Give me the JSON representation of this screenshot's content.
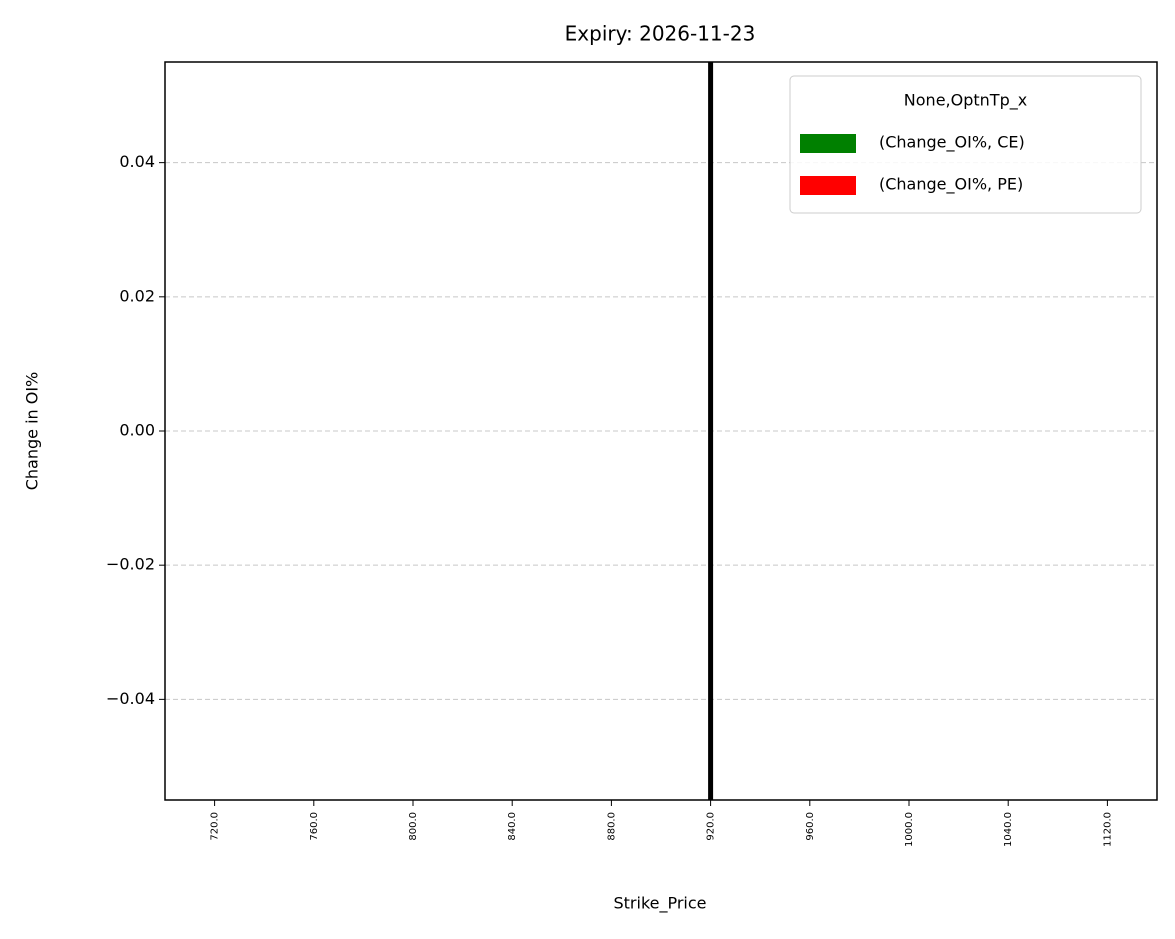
{
  "chart_data": {
    "type": "bar",
    "title": "Expiry: 2026-11-23",
    "x_label": "Strike_Price",
    "y_label": "Change in OI%",
    "categories": [
      "720.0",
      "760.0",
      "800.0",
      "840.0",
      "880.0",
      "920.0",
      "960.0",
      "1000.0",
      "1040.0",
      "1120.0"
    ],
    "series": [
      {
        "name": "(Change_OI%, CE)",
        "color": "#008000",
        "values": [
          0,
          0,
          0,
          0,
          0,
          0,
          0,
          0,
          0,
          0
        ]
      },
      {
        "name": "(Change_OI%, PE)",
        "color": "#ff0000",
        "values": [
          0,
          0,
          0,
          0,
          0,
          0,
          0,
          0,
          0,
          0
        ]
      }
    ],
    "legend_title": "None,OptnTp_x",
    "legend": "upper right",
    "ylim": [
      -0.055,
      0.055
    ],
    "yticks": [
      {
        "value": -0.04,
        "label": "−0.04"
      },
      {
        "value": -0.02,
        "label": "−0.02"
      },
      {
        "value": 0,
        "label": "0.00"
      },
      0.02,
      0.04
    ],
    "grid": true,
    "vline": "920.0"
  }
}
